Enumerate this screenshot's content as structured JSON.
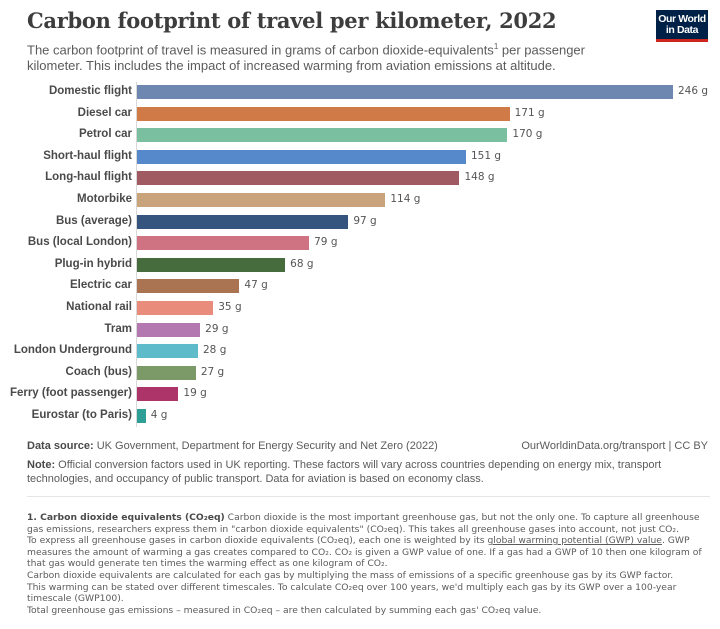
{
  "header": {
    "title": "Carbon footprint of travel per kilometer, 2022",
    "subtitle_part1": "The carbon footprint of travel is measured in grams of carbon dioxide-equivalents",
    "subtitle_sup": "1",
    "subtitle_part2": " per passenger kilometer. This includes the impact of increased warming from aviation emissions at altitude.",
    "logo_line1": "Our World",
    "logo_line2": "in Data"
  },
  "chart_data": {
    "type": "bar",
    "orientation": "horizontal",
    "title": "Carbon footprint of travel per kilometer, 2022",
    "xlabel": "",
    "ylabel": "",
    "unit": "g",
    "xlim": [
      0,
      246
    ],
    "grid": false,
    "categories": [
      "Domestic flight",
      "Diesel car",
      "Petrol car",
      "Short-haul flight",
      "Long-haul flight",
      "Motorbike",
      "Bus (average)",
      "Bus (local London)",
      "Plug-in hybrid",
      "Electric car",
      "National rail",
      "Tram",
      "London Underground",
      "Coach (bus)",
      "Ferry (foot passenger)",
      "Eurostar (to Paris)"
    ],
    "values": [
      246,
      171,
      170,
      151,
      148,
      114,
      97,
      79,
      68,
      47,
      35,
      29,
      28,
      27,
      19,
      4
    ],
    "value_labels": [
      "246 g",
      "171 g",
      "170 g",
      "151 g",
      "148 g",
      "114 g",
      "97 g",
      "79 g",
      "68 g",
      "47 g",
      "35 g",
      "29 g",
      "28 g",
      "27 g",
      "19 g",
      "4 g"
    ],
    "colors": [
      "#6d87b1",
      "#cf7a47",
      "#7abfa0",
      "#5589cb",
      "#a05a62",
      "#c9a37c",
      "#35557e",
      "#cf7383",
      "#466c3e",
      "#aa7352",
      "#e98c7b",
      "#b478b0",
      "#5ebbca",
      "#7c9a68",
      "#ad3468",
      "#2e9f96"
    ]
  },
  "footer": {
    "source_label": "Data source:",
    "source_text": " UK Government, Department for Energy Security and Net Zero (2022)",
    "url": "OurWorldinData.org/transport | CC BY",
    "note_label": "Note:",
    "note_text": " Official conversion factors used in UK reporting. These factors will vary across countries depending on energy mix, transport technologies, and occupancy of public transport. Data for aviation is based on economy class."
  },
  "footnote": {
    "heading": "1. Carbon dioxide equivalents (CO₂eq)",
    "p1": "  Carbon dioxide is the most important greenhouse gas, but not the only one. To capture all greenhouse gas emissions, researchers express them in \"carbon dioxide equivalents\" (CO₂eq). This takes all greenhouse gases into account, not just CO₂.",
    "p2a": "To express all greenhouse gases in carbon dioxide equivalents (CO₂eq), each one is weighted by its ",
    "p2_link": "global warming potential (GWP) value",
    "p2b": ". GWP measures the amount of warming a gas creates compared to CO₂. CO₂ is given a GWP value of one. If a gas had a GWP of 10 then one kilogram of that gas would generate ten times the warming effect as one kilogram of CO₂.",
    "p3": "Carbon dioxide equivalents are calculated for each gas by multiplying the mass of emissions of a specific greenhouse gas by its GWP factor.",
    "p4": "This warming can be stated over different timescales. To calculate CO₂eq over 100 years, we'd multiply each gas by its GWP over a 100-year timescale (GWP100).",
    "p5": "Total greenhouse gas emissions – measured in CO₂eq – are then calculated by summing each gas' CO₂eq value."
  }
}
